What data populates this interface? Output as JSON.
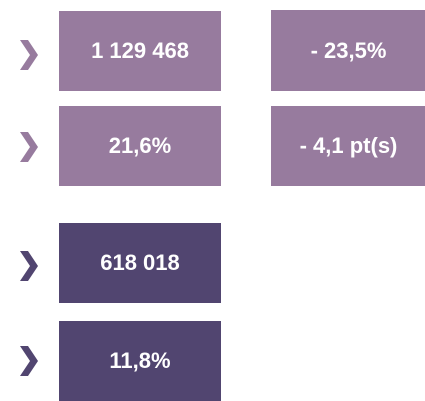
{
  "rows": [
    {
      "value": "1 129 468",
      "change": "- 23,5%"
    },
    {
      "value": "21,6%",
      "change": "- 4,1 pt(s)"
    },
    {
      "value": "618 018"
    },
    {
      "value": "11,8%"
    }
  ]
}
